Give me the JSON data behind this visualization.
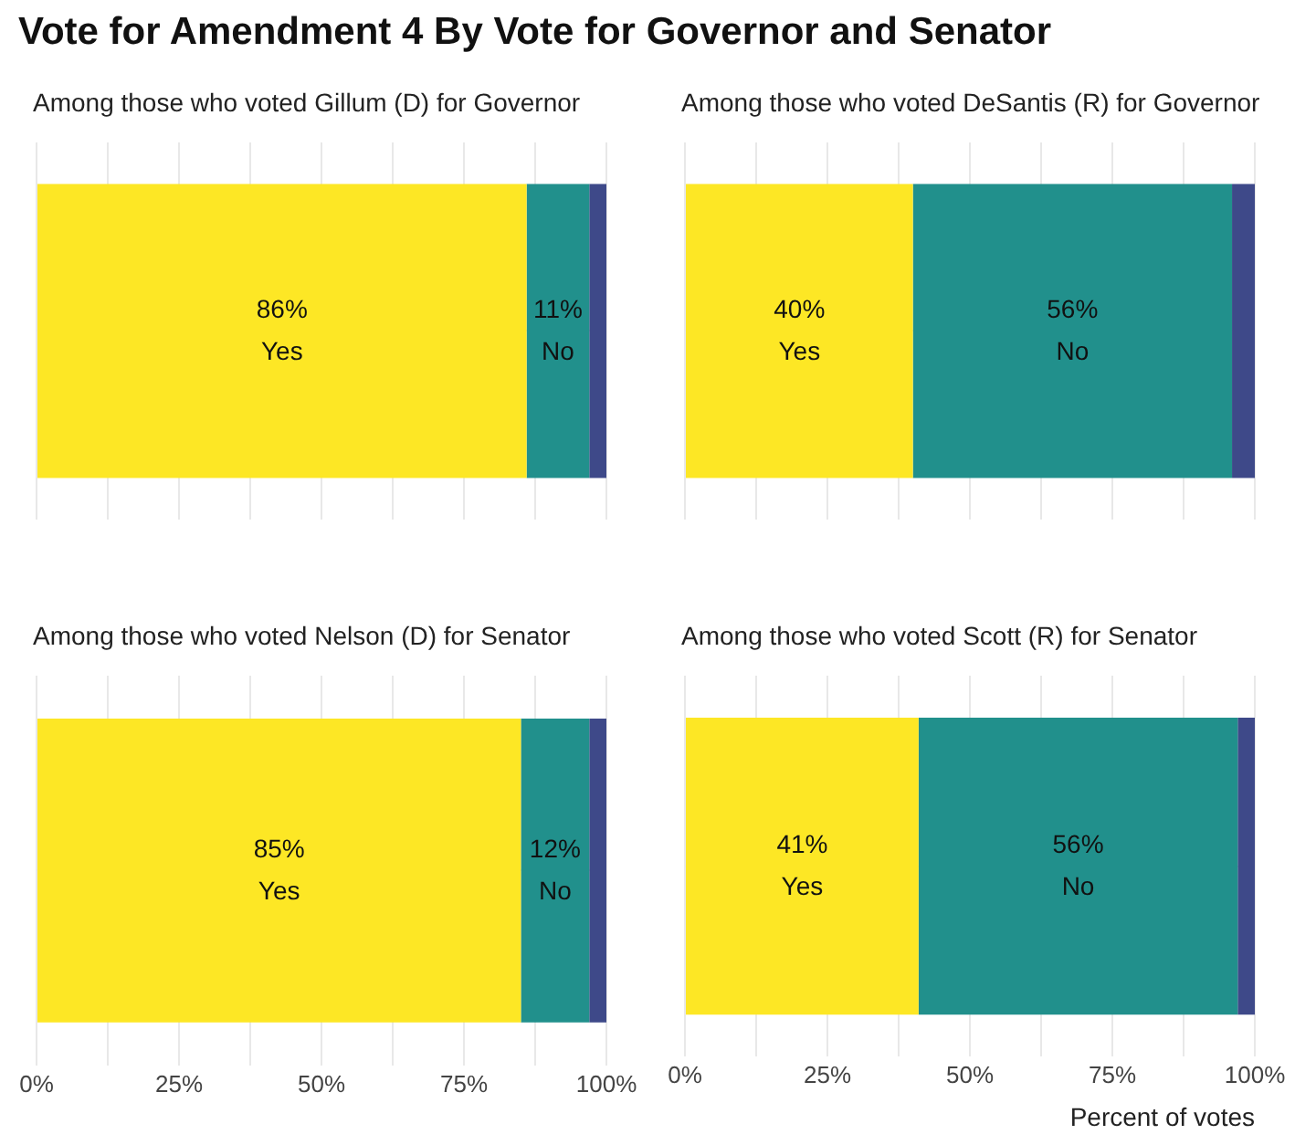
{
  "chart_data": [
    {
      "type": "bar",
      "orientation": "horizontal",
      "stacked": true,
      "title": "Vote for Amendment 4 By Vote for Governor and Senator",
      "subtitle": "Among those who voted Gillum (D) for Governor",
      "categories": [
        null
      ],
      "series": [
        {
          "name": "Yes",
          "color": "#fde725",
          "values": [
            86
          ],
          "value_labels": [
            "86%"
          ]
        },
        {
          "name": "No",
          "color": "#21908c",
          "values": [
            11
          ],
          "value_labels": [
            "11%"
          ]
        },
        {
          "color": "#3e4989",
          "values": [
            3
          ]
        }
      ],
      "xlim": [
        0,
        100
      ],
      "xticks": [
        {
          "value": 0,
          "label": null
        },
        {
          "value": 12.5,
          "label": null
        },
        {
          "value": 25,
          "label": null
        },
        {
          "value": 37.5,
          "label": null
        },
        {
          "value": 50,
          "label": null
        },
        {
          "value": 62.5,
          "label": null
        },
        {
          "value": 75,
          "label": null
        },
        {
          "value": 87.5,
          "label": null
        },
        {
          "value": 100,
          "label": null
        }
      ],
      "grid": true
    },
    {
      "type": "bar",
      "orientation": "horizontal",
      "stacked": true,
      "title": "Among those who voted DeSantis (R) for Governor",
      "categories": [
        null
      ],
      "series": [
        {
          "name": "Yes",
          "color": "#fde725",
          "values": [
            40
          ],
          "value_labels": [
            "40%"
          ]
        },
        {
          "name": "No",
          "color": "#21908c",
          "values": [
            56
          ],
          "value_labels": [
            "56%"
          ]
        },
        {
          "color": "#3e4989",
          "values": [
            4
          ]
        }
      ],
      "xlim": [
        0,
        100
      ],
      "xticks": [
        {
          "value": 0,
          "label": null
        },
        {
          "value": 12.5,
          "label": null
        },
        {
          "value": 25,
          "label": null
        },
        {
          "value": 37.5,
          "label": null
        },
        {
          "value": 50,
          "label": null
        },
        {
          "value": 62.5,
          "label": null
        },
        {
          "value": 75,
          "label": null
        },
        {
          "value": 87.5,
          "label": null
        },
        {
          "value": 100,
          "label": null
        }
      ],
      "grid": true
    },
    {
      "type": "bar",
      "orientation": "horizontal",
      "stacked": true,
      "title": "Among those who voted Nelson (D) for Senator",
      "categories": [
        null
      ],
      "series": [
        {
          "name": "Yes",
          "color": "#fde725",
          "values": [
            85
          ],
          "value_labels": [
            "85%"
          ]
        },
        {
          "name": "No",
          "color": "#21908c",
          "values": [
            12
          ],
          "value_labels": [
            "12%"
          ]
        },
        {
          "color": "#3e4989",
          "values": [
            3
          ]
        }
      ],
      "xlim": [
        0,
        100
      ],
      "xticks": [
        {
          "value": 0,
          "label": "0%"
        },
        {
          "value": 12.5,
          "label": null
        },
        {
          "value": 25,
          "label": "25%"
        },
        {
          "value": 37.5,
          "label": null
        },
        {
          "value": 50,
          "label": "50%"
        },
        {
          "value": 62.5,
          "label": null
        },
        {
          "value": 75,
          "label": "75%"
        },
        {
          "value": 87.5,
          "label": null
        },
        {
          "value": 100,
          "label": "100%"
        }
      ],
      "grid": true,
      "tick_labels": "x"
    },
    {
      "type": "bar",
      "orientation": "horizontal",
      "stacked": true,
      "title": "Among those who voted Scott (R) for Senator",
      "xlabel": "Percent of votes",
      "categories": [
        null
      ],
      "series": [
        {
          "name": "Yes",
          "color": "#fde725",
          "values": [
            41
          ],
          "value_labels": [
            "41%"
          ]
        },
        {
          "name": "No",
          "color": "#21908c",
          "values": [
            56
          ],
          "value_labels": [
            "56%"
          ]
        },
        {
          "color": "#3e4989",
          "values": [
            3
          ]
        }
      ],
      "xlim": [
        0,
        100
      ],
      "xticks": [
        {
          "value": 0,
          "label": "0%"
        },
        {
          "value": 12.5,
          "label": null
        },
        {
          "value": 25,
          "label": "25%"
        },
        {
          "value": 37.5,
          "label": null
        },
        {
          "value": 50,
          "label": "50%"
        },
        {
          "value": 62.5,
          "label": null
        },
        {
          "value": 75,
          "label": "75%"
        },
        {
          "value": 87.5,
          "label": null
        },
        {
          "value": 100,
          "label": "100%"
        }
      ],
      "grid": true,
      "tick_labels": "x"
    }
  ]
}
